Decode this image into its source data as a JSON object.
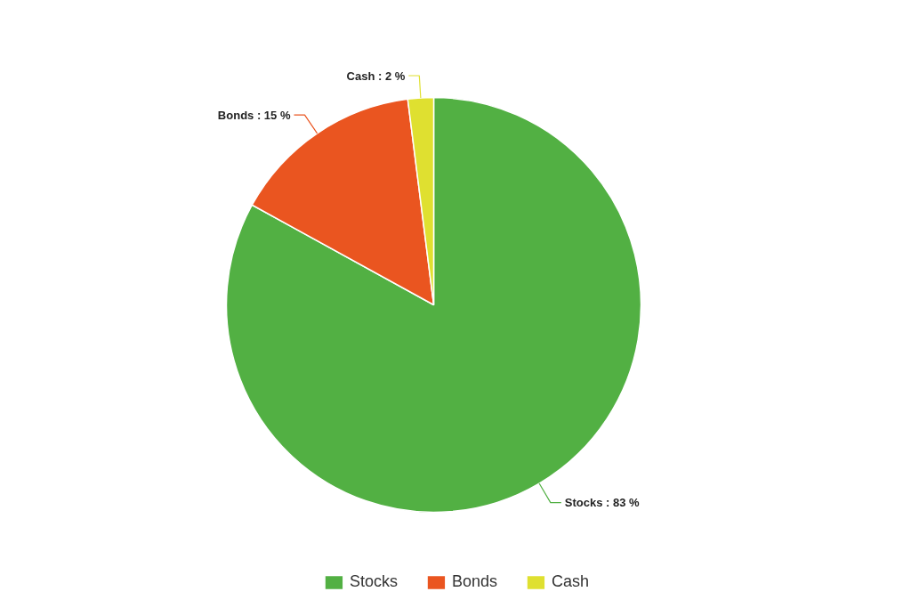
{
  "chart_data": {
    "type": "pie",
    "categories": [
      "Stocks",
      "Bonds",
      "Cash"
    ],
    "values": [
      83,
      15,
      2
    ],
    "colors": [
      "#52b043",
      "#ea5520",
      "#dfe030"
    ],
    "value_labels": [
      "Stocks : 83 %",
      "Bonds : 15 %",
      "Cash : 2 %"
    ],
    "legend": "bottom"
  }
}
